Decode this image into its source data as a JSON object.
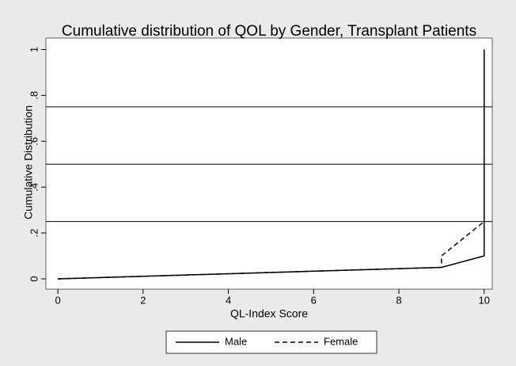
{
  "chart_data": {
    "type": "line",
    "title": "Cumulative distribution of QOL by Gender, Transplant Patients",
    "x_label": "QL-Index Score",
    "y_label": "Cumulative Distribution",
    "xlim": [
      -0.28,
      10.19
    ],
    "ylim": [
      -0.045,
      1.05
    ],
    "xticks": [
      0,
      2,
      4,
      6,
      8,
      10
    ],
    "yticks": [
      0,
      {
        "value": 0.2,
        "label": ".2"
      },
      {
        "value": 0.4,
        "label": ".4"
      },
      {
        "value": 0.6,
        "label": ".6"
      },
      {
        "value": 0.8,
        "label": ".8"
      },
      1
    ],
    "hlines": [
      0.25,
      0.5,
      0.75
    ],
    "series": [
      {
        "name": "Male",
        "color": "#000000",
        "dash": false,
        "x": [
          0,
          9,
          10,
          10
        ],
        "values": [
          0,
          0.05,
          0.1,
          1
        ]
      },
      {
        "name": "Female",
        "color": "#000000",
        "dash": true,
        "x": [
          0,
          9,
          9,
          10,
          10
        ],
        "values": [
          0,
          0.05,
          0.1,
          0.25,
          1
        ]
      }
    ]
  }
}
